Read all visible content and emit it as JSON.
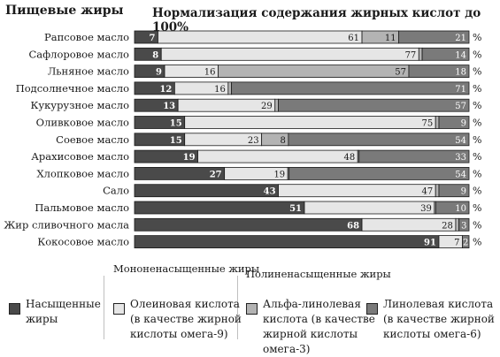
{
  "header": {
    "left_title": "Пищевые жиры",
    "chart_title": "Нормализация содержания жирных кислот до 100%"
  },
  "chart_data": {
    "type": "bar",
    "orientation": "horizontal",
    "stacked": true,
    "xlim": [
      0,
      100
    ],
    "unit_label": "%",
    "categories": [
      "Рапсовое масло",
      "Сафлоровое масло",
      "Льняное масло",
      "Подсолнечное масло",
      "Кукурузное масло",
      "Оливковое масло",
      "Соевое масло",
      "Арахисовое масло",
      "Хлопковое масло",
      "Сало",
      "Пальмовое масло",
      "Жир сливочного масла",
      "Кокосовое масло"
    ],
    "series": [
      {
        "name": "Насыщенные жиры",
        "color": "#4a4a4a",
        "values": [
          7,
          8,
          9,
          12,
          13,
          15,
          15,
          19,
          27,
          43,
          51,
          68,
          91
        ],
        "labels": [
          "7",
          "8",
          "9",
          "12",
          "13",
          "15",
          "15",
          "19",
          "27",
          "43",
          "51",
          "68",
          "91"
        ]
      },
      {
        "name": "Олеиновая кислота (в качестве жирной кислоты омега-9)",
        "color": "#e6e6e6",
        "values": [
          61,
          77,
          16,
          16,
          29,
          75,
          23,
          48,
          19,
          47,
          39,
          28,
          7
        ],
        "labels": [
          "61",
          "77",
          "16",
          "16",
          "29",
          "75",
          "23",
          "48",
          "19",
          "47",
          "39",
          "28",
          "7"
        ]
      },
      {
        "name": "Альфа-линолевая кислота (в качестве жирной кислоты омега-3)",
        "color": "#b3b3b3",
        "values": [
          11,
          1,
          57,
          1,
          1,
          1,
          8,
          0.4,
          0.4,
          1,
          0.4,
          1,
          0
        ],
        "labels": [
          "11",
          "1",
          "57",
          "1",
          "1",
          "1",
          "8",
          "*",
          "*",
          "1",
          "*",
          "1",
          ""
        ]
      },
      {
        "name": "Линолевая кислота (в качестве жирной кислоты омега-6)",
        "color": "#7a7a7a",
        "values": [
          21,
          14,
          18,
          71,
          57,
          9,
          54,
          33,
          54,
          9,
          10,
          3,
          2
        ],
        "labels": [
          "21",
          "14",
          "18",
          "71",
          "57",
          "9",
          "54",
          "33",
          "54",
          "9",
          "10",
          "3",
          "2"
        ]
      }
    ]
  },
  "legend": {
    "groups": {
      "mono": "Мононенасыщенные\nжиры",
      "poly": "Полиненасыщенные жиры"
    },
    "items": [
      {
        "key": "saturated",
        "label": "Насыщенные\nжиры",
        "color": "#4a4a4a"
      },
      {
        "key": "oleic",
        "label": "Олеиновая кислота\n(в качестве жирной\nкислоты омега-9)",
        "color": "#e6e6e6"
      },
      {
        "key": "alpha",
        "label": "Альфа-линолевая\nкислота (в качестве\nжирной кислоты\nомега-3)",
        "color": "#b3b3b3"
      },
      {
        "key": "linoleic",
        "label": "Линолевая кислота\n(в качестве жирной\nкислоты омега-6)",
        "color": "#7a7a7a"
      }
    ]
  }
}
